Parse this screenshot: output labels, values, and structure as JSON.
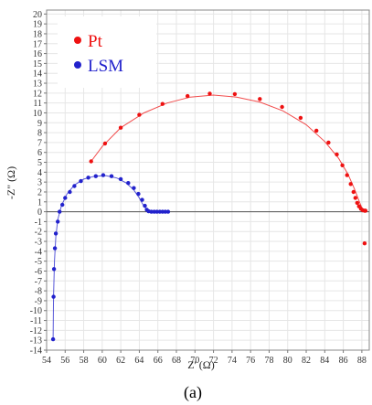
{
  "chart_data": {
    "type": "scatter",
    "xlabel": "Z' (Ω)",
    "ylabel": "-Z\" (Ω)",
    "xlim": [
      54,
      88.8
    ],
    "ylim": [
      -14,
      20.4
    ],
    "x_ticks": [
      54,
      56,
      58,
      60,
      62,
      64,
      66,
      68,
      70,
      72,
      74,
      76,
      78,
      80,
      82,
      84,
      86,
      88
    ],
    "y_ticks": [
      20,
      19,
      18,
      17,
      16,
      15,
      14,
      13,
      12,
      11,
      10,
      9,
      8,
      7,
      6,
      5,
      4,
      3,
      2,
      1,
      0,
      -1,
      -2,
      -3,
      -4,
      -5,
      -6,
      -7,
      -8,
      -9,
      -10,
      -11,
      -12,
      -13,
      -14
    ],
    "grid": true,
    "legend": "top-left",
    "caption": "(a)",
    "series": [
      {
        "name": "Pt",
        "color": "#ee1111",
        "points": [
          [
            58.8,
            5.1
          ],
          [
            60.3,
            6.9
          ],
          [
            62.0,
            8.5
          ],
          [
            64.0,
            9.8
          ],
          [
            66.5,
            10.9
          ],
          [
            69.2,
            11.7
          ],
          [
            71.6,
            11.95
          ],
          [
            74.3,
            11.9
          ],
          [
            77.0,
            11.4
          ],
          [
            79.4,
            10.6
          ],
          [
            81.4,
            9.5
          ],
          [
            83.1,
            8.2
          ],
          [
            84.4,
            7.0
          ],
          [
            85.3,
            5.8
          ],
          [
            85.9,
            4.7
          ],
          [
            86.4,
            3.7
          ],
          [
            86.8,
            2.8
          ],
          [
            87.1,
            2.0
          ],
          [
            87.3,
            1.4
          ],
          [
            87.5,
            0.9
          ],
          [
            87.7,
            0.55
          ],
          [
            87.9,
            0.3
          ],
          [
            88.1,
            0.15
          ],
          [
            88.3,
            0.1
          ],
          [
            88.4,
            0.1
          ],
          [
            88.3,
            -3.2
          ]
        ],
        "fit": [
          [
            58.8,
            5.1
          ],
          [
            60.0,
            6.6
          ],
          [
            62.0,
            8.5
          ],
          [
            64.5,
            10.0
          ],
          [
            67.0,
            11.0
          ],
          [
            69.5,
            11.6
          ],
          [
            72.0,
            11.8
          ],
          [
            74.5,
            11.6
          ],
          [
            77.0,
            11.1
          ],
          [
            79.5,
            10.2
          ],
          [
            82.0,
            8.8
          ],
          [
            84.0,
            7.1
          ],
          [
            85.5,
            5.4
          ],
          [
            86.5,
            3.8
          ],
          [
            87.2,
            2.3
          ],
          [
            87.7,
            1.1
          ],
          [
            88.0,
            0.4
          ],
          [
            88.2,
            0.1
          ],
          [
            88.4,
            0.0
          ]
        ]
      },
      {
        "name": "LSM",
        "color": "#2222cc",
        "points": [
          [
            54.7,
            -12.9
          ],
          [
            54.75,
            -8.6
          ],
          [
            54.8,
            -5.8
          ],
          [
            54.9,
            -3.7
          ],
          [
            55.0,
            -2.2
          ],
          [
            55.2,
            -1.0
          ],
          [
            55.4,
            0.0
          ],
          [
            55.7,
            0.7
          ],
          [
            56.0,
            1.4
          ],
          [
            56.5,
            2.0
          ],
          [
            57.0,
            2.6
          ],
          [
            57.7,
            3.1
          ],
          [
            58.5,
            3.45
          ],
          [
            59.3,
            3.6
          ],
          [
            60.1,
            3.7
          ],
          [
            61.0,
            3.6
          ],
          [
            62.0,
            3.3
          ],
          [
            62.8,
            2.9
          ],
          [
            63.4,
            2.4
          ],
          [
            63.9,
            1.8
          ],
          [
            64.3,
            1.2
          ],
          [
            64.6,
            0.6
          ],
          [
            64.8,
            0.2
          ],
          [
            65.0,
            0.05
          ],
          [
            65.3,
            0.0
          ],
          [
            65.6,
            0.0
          ],
          [
            65.9,
            0.0
          ],
          [
            66.2,
            0.0
          ],
          [
            66.5,
            0.0
          ],
          [
            66.8,
            0.0
          ],
          [
            67.1,
            0.0
          ]
        ],
        "fit": [
          [
            54.7,
            -13.0
          ],
          [
            54.75,
            -8.5
          ],
          [
            54.85,
            -5.0
          ],
          [
            55.0,
            -2.5
          ],
          [
            55.2,
            -0.8
          ],
          [
            55.6,
            0.6
          ],
          [
            56.2,
            1.8
          ],
          [
            57.0,
            2.7
          ],
          [
            58.0,
            3.3
          ],
          [
            59.2,
            3.6
          ],
          [
            60.4,
            3.65
          ],
          [
            61.6,
            3.4
          ],
          [
            62.6,
            2.9
          ],
          [
            63.4,
            2.2
          ],
          [
            64.0,
            1.4
          ],
          [
            64.4,
            0.7
          ],
          [
            64.8,
            0.2
          ],
          [
            65.2,
            0.0
          ],
          [
            66.0,
            0.0
          ],
          [
            67.0,
            0.0
          ]
        ]
      }
    ]
  }
}
